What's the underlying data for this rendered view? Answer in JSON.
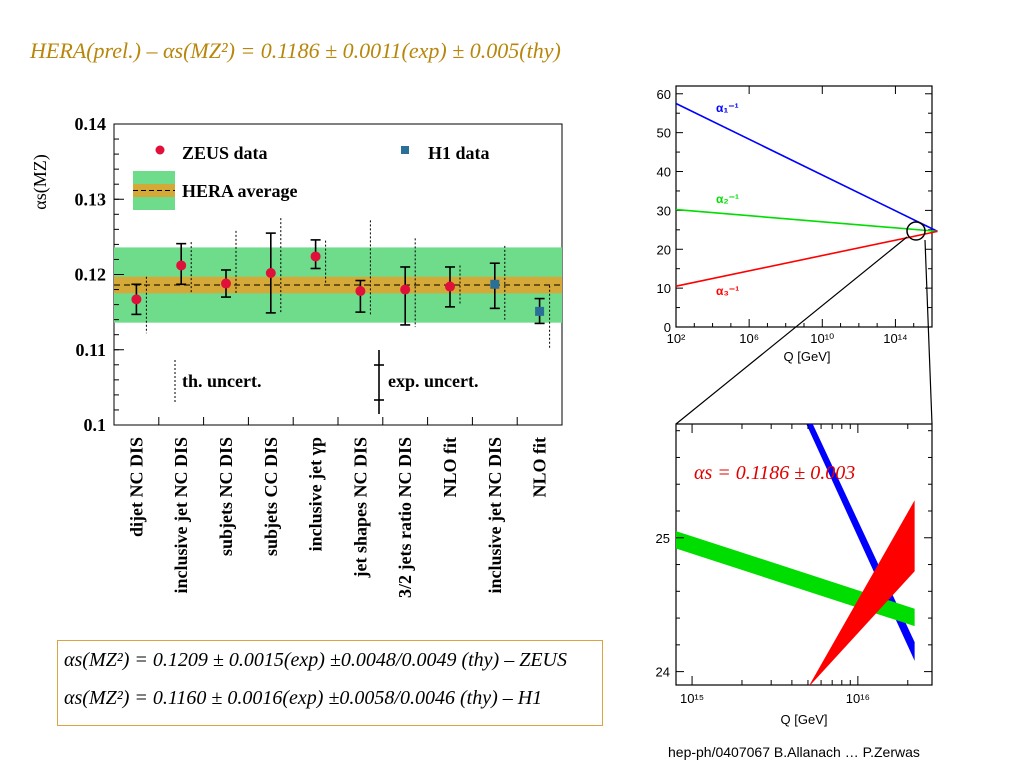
{
  "slide": {
    "title": "HERA(prel.) – αs(MZ²) = 0.1186 ± 0.0011(exp) ± 0.005(thy)",
    "reference": "hep-ph/0407067 B.Allanach … P.Zerwas"
  },
  "summary_box": {
    "zeus_line": "αs(MZ²) = 0.1209 ± 0.0015(exp) ±0.0048/0.0049 (thy) – ZEUS",
    "h1_line": "αs(MZ²) = 0.1160 ± 0.0016(exp) ±0.0058/0.0046 (thy) – H1"
  },
  "colors": {
    "title": "#b8860b",
    "zeus": "#e0103a",
    "h1": "#2a6f97",
    "hera_band_outer": "#6fdc8c",
    "hera_band_inner": "#d4a937",
    "alpha1": "#0000ff",
    "alpha2": "#00dd00",
    "alpha3": "#ff0000"
  },
  "chart_data": [
    {
      "type": "scatter",
      "ylabel": "αs(MZ)",
      "ylim": [
        0.1,
        0.14
      ],
      "yticks": [
        "0.14",
        "0.13",
        "0.12",
        "0.11",
        "0.1"
      ],
      "categories": [
        "dijet NC DIS",
        "inclusive jet NC DIS",
        "subjets NC DIS",
        "subjets CC DIS",
        "inclusive jet γp",
        "jet shapes NC DIS",
        "3/2 jets ratio NC DIS",
        "NLO fit",
        "inclusive jet NC DIS",
        "NLO fit"
      ],
      "series": [
        {
          "name": "ZEUS data",
          "marker": "circle",
          "values": [
            0.1167,
            0.1212,
            0.1188,
            0.1202,
            0.1224,
            0.1178,
            0.118,
            0.1184,
            null,
            null
          ],
          "exp_lo": [
            0.1147,
            0.1187,
            0.117,
            0.1149,
            0.1208,
            0.115,
            0.1133,
            0.1157,
            null,
            null
          ],
          "exp_hi": [
            0.1187,
            0.1241,
            0.1206,
            0.1255,
            0.1246,
            0.1192,
            0.121,
            0.121,
            null,
            null
          ],
          "th_lo": [
            0.1122,
            0.1175,
            0.1175,
            0.115,
            0.1186,
            0.1145,
            0.113,
            0.116,
            null,
            null
          ],
          "th_hi": [
            0.1197,
            0.1243,
            0.1258,
            0.1275,
            0.1245,
            0.1272,
            0.1248,
            0.1212,
            null,
            null
          ]
        },
        {
          "name": "H1 data",
          "marker": "square",
          "values": [
            null,
            null,
            null,
            null,
            null,
            null,
            null,
            null,
            0.1187,
            0.1151
          ],
          "exp_lo": [
            null,
            null,
            null,
            null,
            null,
            null,
            null,
            null,
            0.1155,
            0.1135
          ],
          "exp_hi": [
            null,
            null,
            null,
            null,
            null,
            null,
            null,
            null,
            0.1215,
            0.1168
          ],
          "th_lo": [
            null,
            null,
            null,
            null,
            null,
            null,
            null,
            null,
            0.114,
            0.1102
          ],
          "th_hi": [
            null,
            null,
            null,
            null,
            null,
            null,
            null,
            null,
            0.1238,
            0.1185
          ]
        }
      ],
      "hera_average": {
        "name": "HERA average",
        "value": 0.1186,
        "inner": [
          0.1175,
          0.1197
        ],
        "outer": [
          0.1136,
          0.1236
        ]
      },
      "legend": {
        "th": "th. uncert.",
        "exp": "exp. uncert."
      }
    },
    {
      "type": "line",
      "xlabel": "Q [GeV]",
      "xscale": "log",
      "xlim": [
        100,
        1e+16
      ],
      "xticks": [
        "10²",
        "10⁶",
        "10¹⁰",
        "10¹⁴"
      ],
      "ylim": [
        0,
        62
      ],
      "yticks": [
        "0",
        "10",
        "20",
        "30",
        "40",
        "50",
        "60"
      ],
      "series": [
        {
          "name": "α₁⁻¹",
          "color": "#0000ff",
          "x": [
            100,
            2e+16
          ],
          "y": [
            57.5,
            24.6
          ]
        },
        {
          "name": "α₂⁻¹",
          "color": "#00dd00",
          "x": [
            100,
            2e+16
          ],
          "y": [
            30.2,
            24.6
          ]
        },
        {
          "name": "α₃⁻¹",
          "color": "#ff0000",
          "x": [
            100,
            2e+16
          ],
          "y": [
            10.5,
            24.6
          ]
        }
      ]
    },
    {
      "type": "area",
      "xlabel": "Q [GeV]",
      "xscale": "log",
      "xlim": [
        800000000000000.0,
        2.8e+16
      ],
      "xticks": [
        "10¹⁵",
        "10¹⁶"
      ],
      "ylim": [
        23.9,
        25.85
      ],
      "yticks": [
        "25",
        "24"
      ],
      "annotation": "αs = 0.1186 ± 0.003",
      "bands": [
        {
          "name": "α₁⁻¹",
          "color": "#0000ff",
          "x": [
            4300000000000000.0,
            2.2e+16
          ],
          "y_lo": [
            26.0,
            24.08
          ],
          "y_hi": [
            26.1,
            24.22
          ]
        },
        {
          "name": "α₂⁻¹",
          "color": "#00dd00",
          "x": [
            800000000000000.0,
            2.2e+16
          ],
          "y_lo": [
            24.92,
            24.34
          ],
          "y_hi": [
            25.05,
            24.47
          ]
        },
        {
          "name": "α₃⁻¹",
          "color": "#ff0000",
          "x": [
            5000000000000000.0,
            2.2e+16
          ],
          "y_lo": [
            23.88,
            24.75
          ],
          "y_hi": [
            23.88,
            25.28
          ]
        }
      ]
    }
  ]
}
